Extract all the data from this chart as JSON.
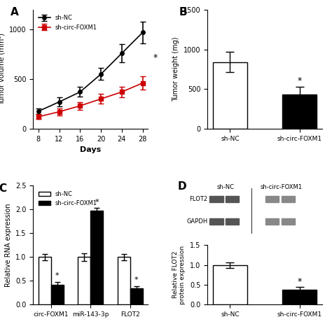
{
  "panel_A": {
    "days": [
      8,
      12,
      16,
      20,
      24,
      28
    ],
    "sh_NC_mean": [
      175,
      270,
      370,
      550,
      760,
      970
    ],
    "sh_NC_err": [
      30,
      45,
      50,
      60,
      90,
      110
    ],
    "sh_circ_mean": [
      120,
      170,
      230,
      300,
      370,
      460
    ],
    "sh_circ_err": [
      25,
      35,
      40,
      50,
      55,
      65
    ],
    "ylabel": "Tumor volume (mm³)",
    "xlabel": "Days",
    "ylim": [
      0,
      1200
    ],
    "yticks": [
      0,
      500,
      1000
    ],
    "panel_label": "A"
  },
  "panel_B": {
    "categories": [
      "sh-NC",
      "sh-circ-FOXM1"
    ],
    "means": [
      840,
      430
    ],
    "errors": [
      130,
      100
    ],
    "colors": [
      "white",
      "black"
    ],
    "ylabel": "Tumor weight (mg)",
    "ylim": [
      0,
      1500
    ],
    "yticks": [
      0,
      500,
      1000,
      1500
    ],
    "panel_label": "B"
  },
  "panel_C": {
    "groups": [
      "circ-FOXM1",
      "miR-143-3p",
      "FLOT2"
    ],
    "sh_NC_means": [
      1.0,
      1.0,
      1.0
    ],
    "sh_NC_errs": [
      0.07,
      0.08,
      0.07
    ],
    "sh_circ_means": [
      0.42,
      1.97,
      0.34
    ],
    "sh_circ_errs": [
      0.06,
      0.06,
      0.05
    ],
    "ylabel": "Relative RNA expression",
    "ylim": [
      0,
      2.5
    ],
    "yticks": [
      0.0,
      0.5,
      1.0,
      1.5,
      2.0,
      2.5
    ],
    "panel_label": "C"
  },
  "panel_D": {
    "categories": [
      "sh-NC",
      "sh-circ-FOXM1"
    ],
    "means": [
      1.0,
      0.38
    ],
    "errors": [
      0.07,
      0.06
    ],
    "colors": [
      "white",
      "black"
    ],
    "ylabel": "Relative FLOT2\nprotein expression",
    "ylim": [
      0,
      1.5
    ],
    "yticks": [
      0.0,
      0.5,
      1.0,
      1.5
    ],
    "panel_label": "D"
  },
  "line_colors": {
    "sh_NC": "#000000",
    "sh_circ": "#cc0000"
  },
  "bar_edge_color": "#000000",
  "blot": {
    "flot2_nc_color": "#555555",
    "flot2_ci_color": "#888888",
    "gapdh_nc_color": "#555555",
    "gapdh_ci_color": "#888888"
  }
}
